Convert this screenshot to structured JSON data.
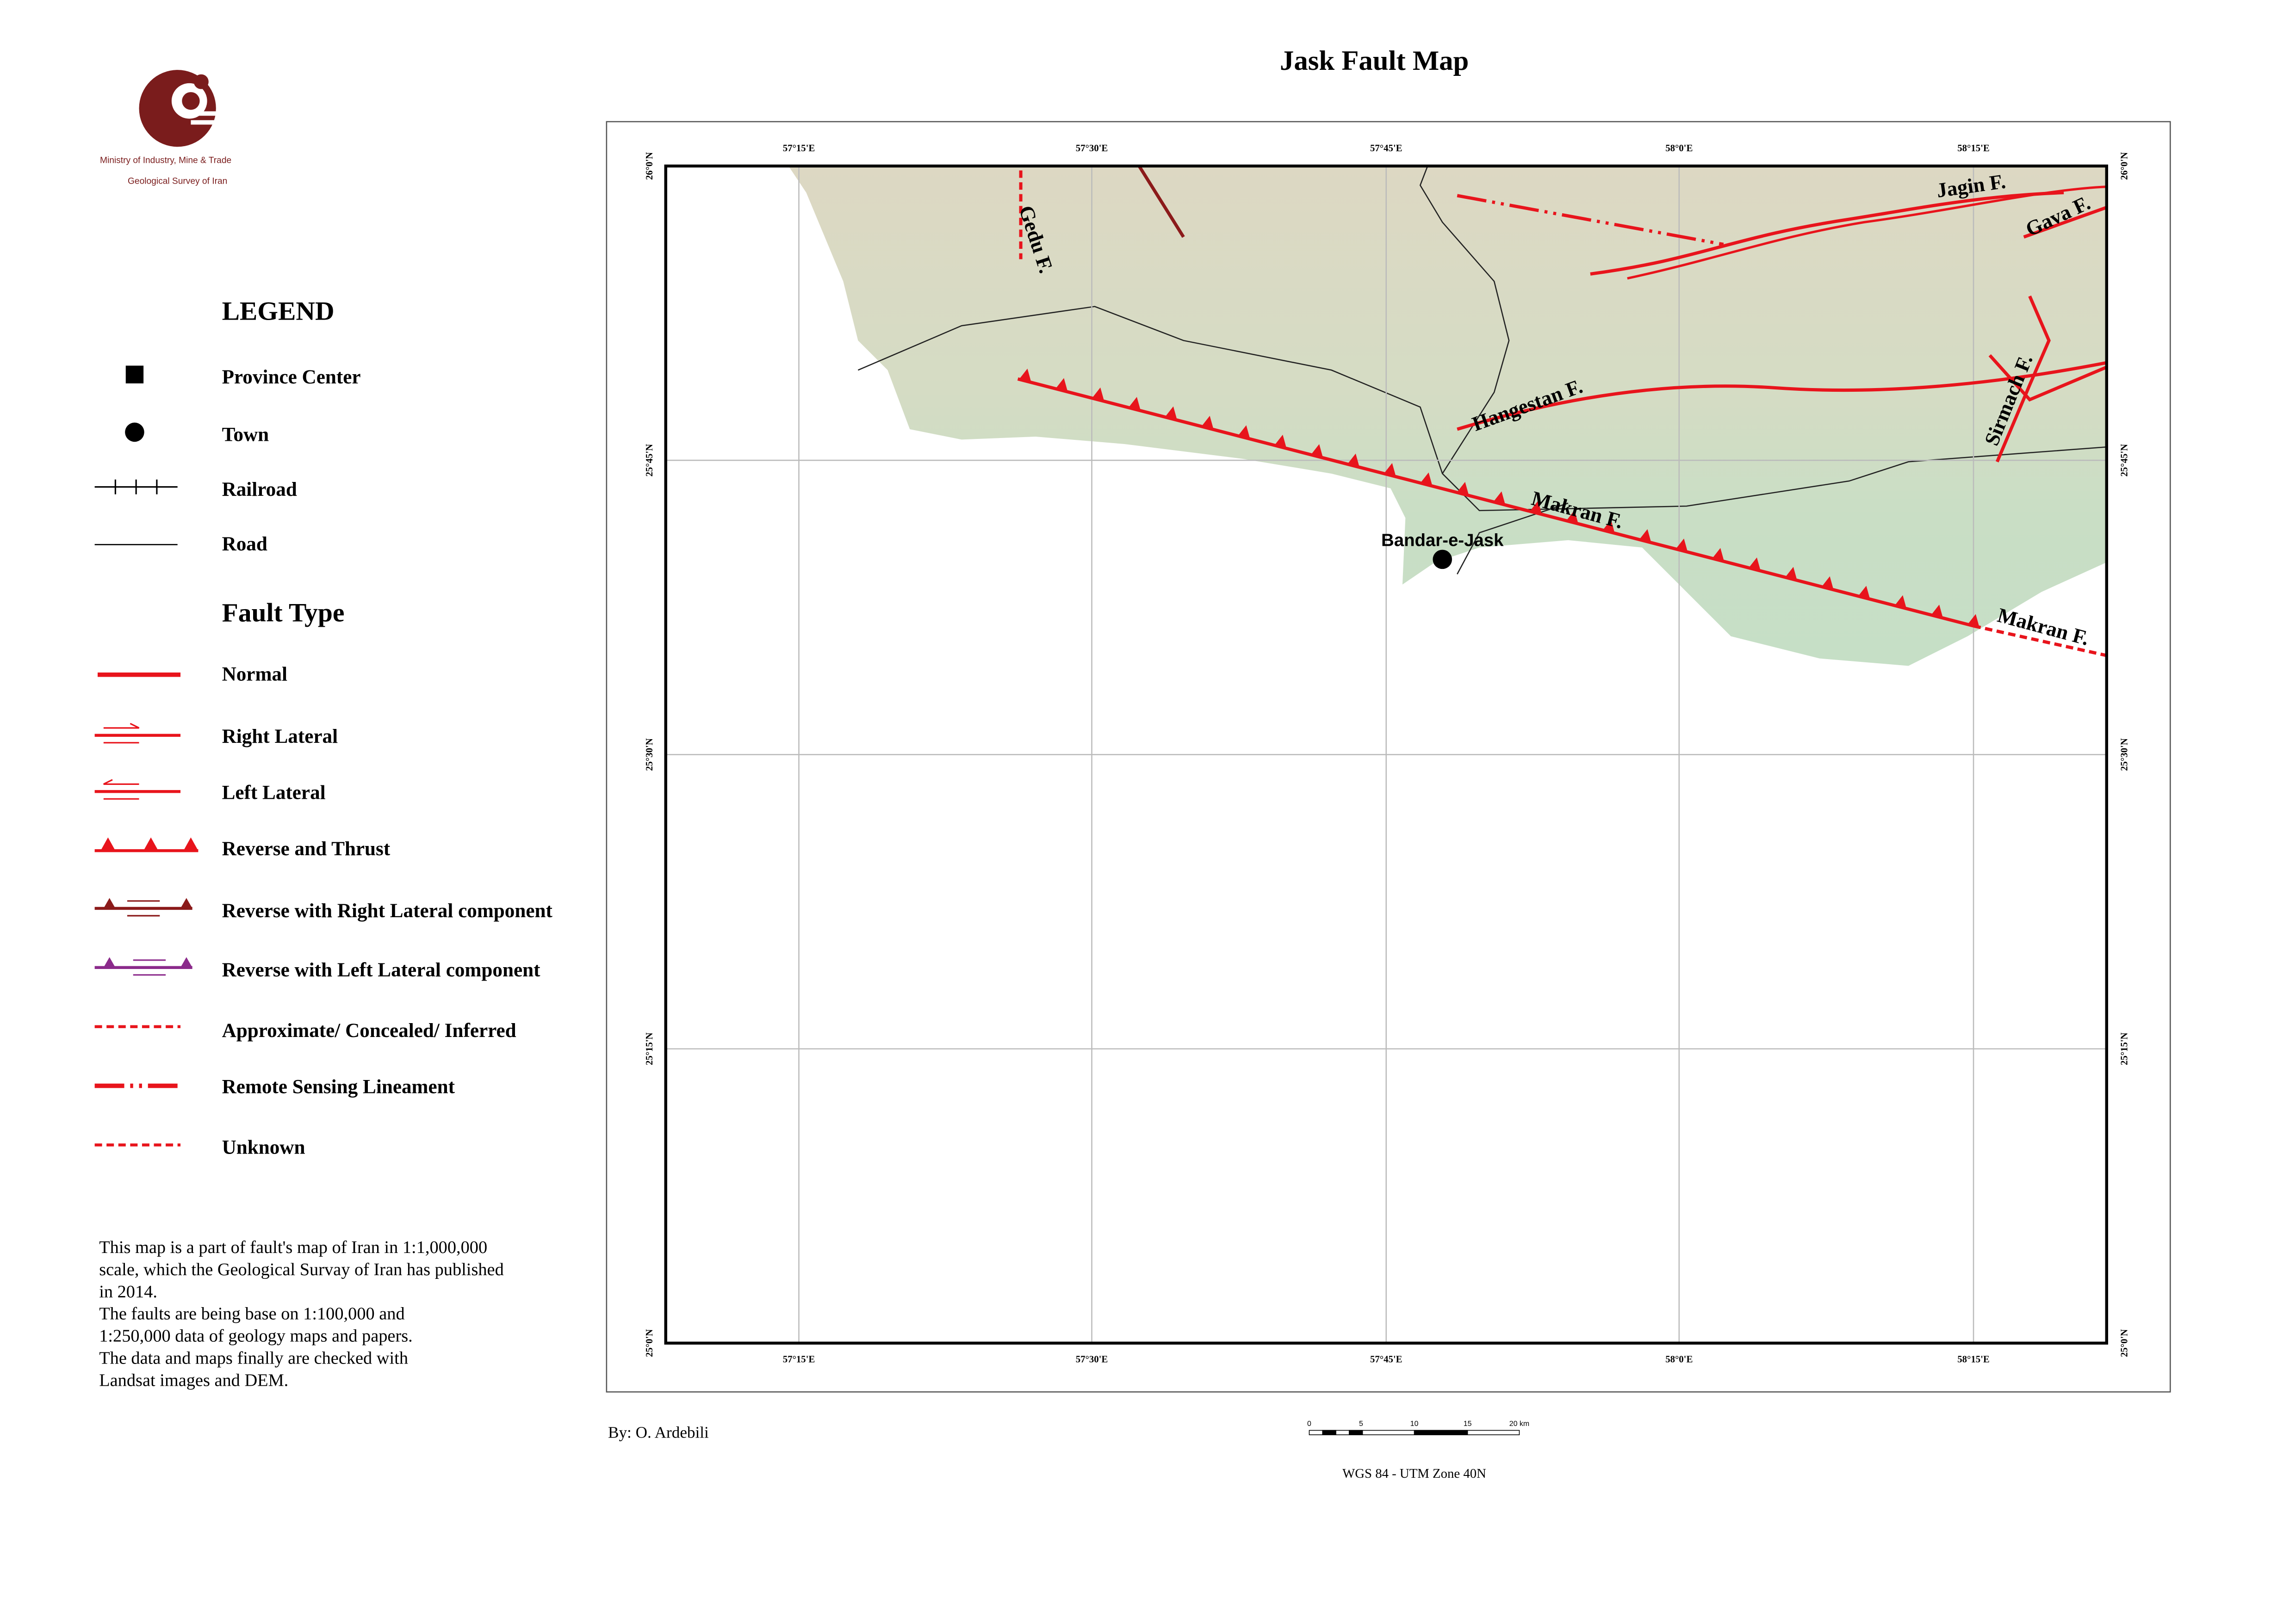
{
  "header": {
    "title": "Jask Fault Map",
    "organization": [
      "Ministry of Industry, Mine & Trade",
      "Geological Survey of Iran"
    ]
  },
  "legend": {
    "title": "LEGEND",
    "items": [
      "Province Center",
      "Town",
      "Railroad",
      "Road"
    ],
    "fault_type_title": "Fault Type",
    "fault_types": [
      "Normal",
      "Right Lateral",
      "Left Lateral",
      "Reverse and Thrust",
      "Reverse with Right Lateral component",
      "Reverse with Left Lateral component",
      "Approximate/ Concealed/ Inferred",
      "Remote Sensing Lineament",
      "Unknown"
    ]
  },
  "note": [
    "This map is a part of fault's map of Iran in 1:1,000,000",
    "scale, which the Geological Survay of Iran has published",
    "in 2014.",
    "The faults are being base on 1:100,000 and",
    "1:250,000 data of geology maps and papers.",
    "The data and maps finally are checked with",
    "Landsat images and DEM."
  ],
  "map": {
    "longitude_labels": [
      "57°15'E",
      "57°30'E",
      "57°45'E",
      "58°0'E",
      "58°15'E"
    ],
    "latitude_labels": [
      "26°0'N",
      "25°45'N",
      "25°30'N",
      "25°15'N",
      "25°0'N"
    ],
    "town": "Bandar-e-Jask",
    "fault_labels": [
      "Gedu F.",
      "Jagin F.",
      "Gava F.",
      "Hangestan F.",
      "Sirmach F.",
      "Makran F.",
      "Makran F."
    ]
  },
  "footer": {
    "author": "By: O. Ardebili",
    "scale_labels": [
      "0",
      "5",
      "10",
      "15",
      "20 km"
    ],
    "projection": "WGS 84 - UTM Zone 40N"
  }
}
